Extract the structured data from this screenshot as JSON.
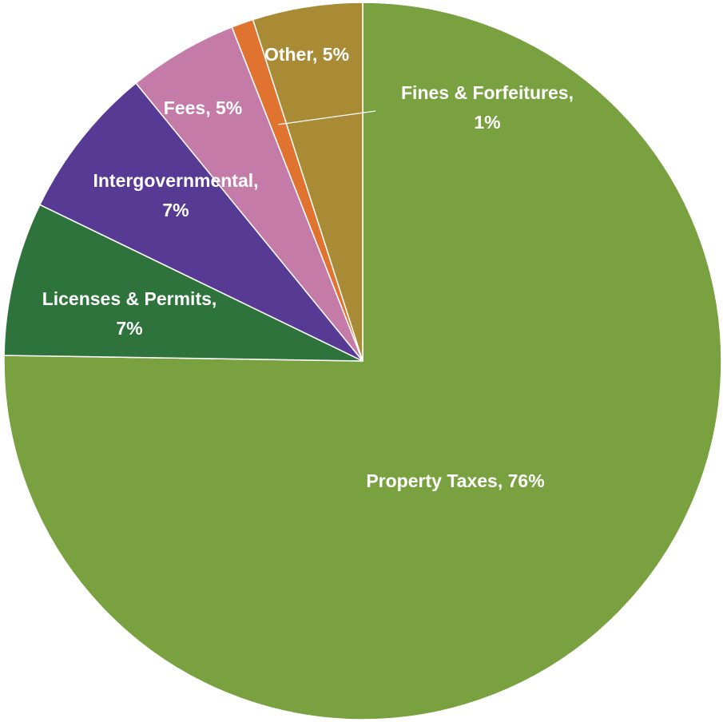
{
  "chart_data": {
    "type": "pie",
    "title": "",
    "start_angle_deg": 0,
    "direction": "clockwise",
    "slices": [
      {
        "name": "Property Taxes",
        "value": 76,
        "color": "#7aa140",
        "label_lines": [
          "Property Taxes, 76%"
        ]
      },
      {
        "name": "Licenses & Permits",
        "value": 7,
        "color": "#2d733b",
        "label_lines": [
          "Licenses & Permits,",
          "7%"
        ]
      },
      {
        "name": "Intergovernmental",
        "value": 7,
        "color": "#563a93",
        "label_lines": [
          "Intergovernmental,",
          "7%"
        ]
      },
      {
        "name": "Fees",
        "value": 5,
        "color": "#c57ba8",
        "label_lines": [
          "Fees, 5%"
        ]
      },
      {
        "name": "Fines & Forfeitures",
        "value": 1,
        "color": "#e0732f",
        "label_lines": [
          "Fines & Forfeitures,",
          "1%"
        ]
      },
      {
        "name": "Other",
        "value": 5,
        "color": "#a98b36",
        "label_lines": [
          "Other, 5%"
        ]
      }
    ],
    "legend": "none"
  }
}
